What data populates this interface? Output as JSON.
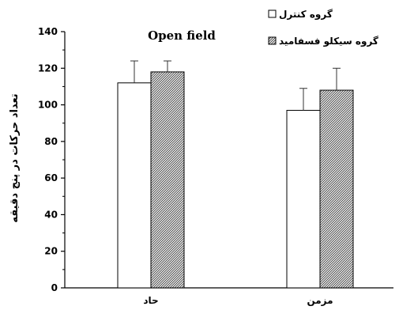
{
  "chart_data": {
    "type": "bar",
    "title": "Open field",
    "ylabel": "تعداد حرکات در پنج دقیقه",
    "xlabel": "",
    "ylim": [
      0,
      140
    ],
    "yticks": [
      0,
      20,
      40,
      60,
      80,
      100,
      120,
      140
    ],
    "categories": [
      "حاد",
      "مزمن"
    ],
    "series": [
      {
        "name": "گروه کنترل",
        "values": [
          112,
          97
        ],
        "errors": [
          12,
          12
        ],
        "fill": "#ffffff"
      },
      {
        "name": "گروه سیکلو فسفامید",
        "values": [
          118,
          108
        ],
        "errors": [
          6,
          12
        ],
        "fill": "hatch"
      }
    ],
    "legend_position": "top-right",
    "grid": false
  }
}
